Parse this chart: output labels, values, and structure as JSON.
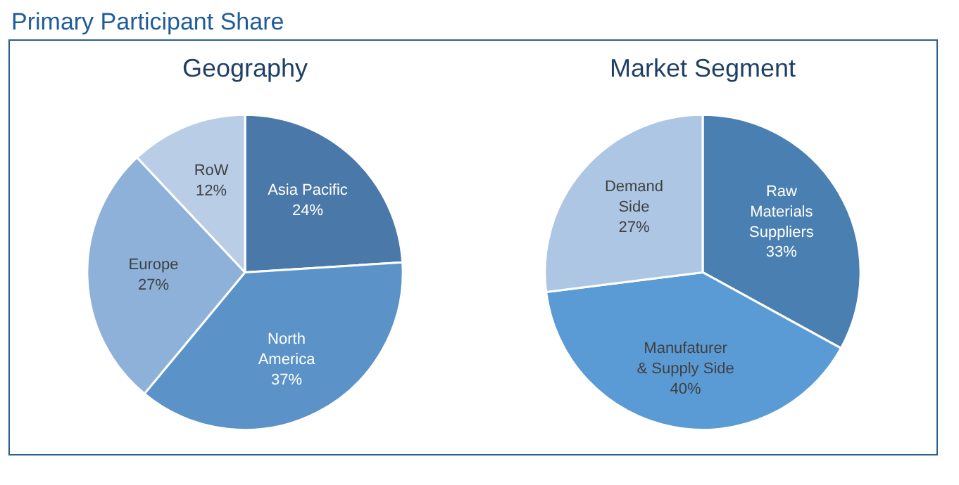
{
  "chart_data": [
    {
      "type": "pie",
      "title": "Geography",
      "annotations": [
        "Primary Participant Share"
      ],
      "categories": [
        "Asia Pacific",
        "North\nAmerica",
        "Europe",
        "RoW"
      ],
      "values": [
        24,
        37,
        27,
        12
      ],
      "value_labels": [
        "24%",
        "37%",
        "27%",
        "12%"
      ],
      "colors": [
        "#4a78a8",
        "#5b93c9",
        "#8eb1da",
        "#b9cde6"
      ]
    },
    {
      "type": "pie",
      "title": "Market Segment",
      "categories": [
        "Raw\nMaterials\nSuppliers",
        "Manufaturer\n& Supply Side",
        "Demand\nSide"
      ],
      "values": [
        33,
        40,
        27
      ],
      "value_labels": [
        "33%",
        "40%",
        "27%"
      ],
      "colors": [
        "#4a7fb1",
        "#5b9bd5",
        "#adc6e4"
      ]
    }
  ]
}
